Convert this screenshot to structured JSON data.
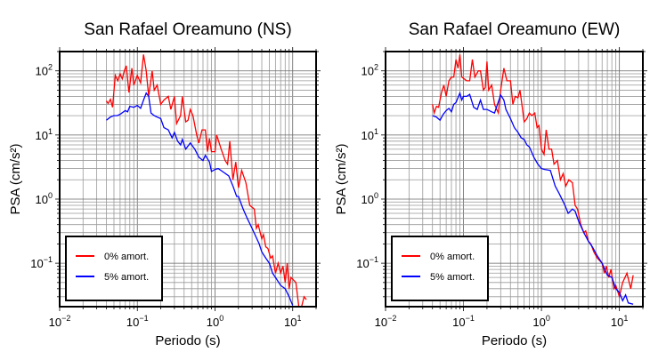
{
  "colors": {
    "series_0": "#ff0000",
    "series_5": "#0000ff",
    "grid": "#999999"
  },
  "chart_data": [
    {
      "type": "line",
      "title": "San Rafael Oreamuno (NS)",
      "xlabel": "Periodo (s)",
      "ylabel": "PSA (cm/s²)",
      "xscale": "log",
      "yscale": "log",
      "xlim": [
        0.01,
        20
      ],
      "ylim": [
        0.021,
        200
      ],
      "xticks": [
        {
          "base": "10",
          "exp": "−2",
          "value": 0.01
        },
        {
          "base": "10",
          "exp": "−1",
          "value": 0.1
        },
        {
          "base": "10",
          "exp": "0",
          "value": 1
        },
        {
          "base": "10",
          "exp": "1",
          "value": 10
        }
      ],
      "yticks": [
        {
          "base": "10",
          "exp": "−1",
          "value": 0.1
        },
        {
          "base": "10",
          "exp": "0",
          "value": 1
        },
        {
          "base": "10",
          "exp": "1",
          "value": 10
        },
        {
          "base": "10",
          "exp": "2",
          "value": 100
        }
      ],
      "grid": true,
      "legend_position": "bottom-left",
      "series": [
        {
          "name": "0% amort.",
          "color": "#ff0000",
          "x": [
            0.04,
            0.042,
            0.045,
            0.048,
            0.052,
            0.056,
            0.06,
            0.064,
            0.068,
            0.072,
            0.078,
            0.085,
            0.09,
            0.1,
            0.11,
            0.12,
            0.13,
            0.14,
            0.155,
            0.165,
            0.18,
            0.2,
            0.22,
            0.25,
            0.27,
            0.3,
            0.32,
            0.36,
            0.38,
            0.42,
            0.45,
            0.48,
            0.52,
            0.58,
            0.62,
            0.68,
            0.75,
            0.8,
            0.85,
            0.9,
            1.0,
            1.05,
            1.2,
            1.35,
            1.45,
            1.55,
            1.7,
            1.85,
            2.0,
            2.2,
            2.5,
            2.8,
            3.2,
            3.4,
            3.6,
            4.0,
            4.2,
            4.5,
            4.8,
            5.2,
            5.5,
            6.0,
            6.5,
            7.0,
            7.5,
            8.0,
            8.5,
            9.0,
            9.5,
            11,
            12,
            13,
            14,
            15
          ],
          "y": [
            34,
            31,
            36,
            27,
            85,
            70,
            90,
            75,
            100,
            120,
            46,
            110,
            60,
            85,
            65,
            180,
            100,
            40,
            100,
            50,
            60,
            30,
            35,
            40,
            25,
            40,
            15,
            20,
            40,
            16,
            17,
            25,
            20,
            10,
            7.5,
            12,
            12,
            5.5,
            8.8,
            5.5,
            5.5,
            10,
            6,
            4,
            3.5,
            8,
            2.0,
            3.8,
            1.5,
            2.8,
            1.8,
            0.8,
            0.7,
            0.35,
            0.4,
            0.24,
            0.28,
            0.18,
            0.17,
            0.12,
            0.13,
            0.07,
            0.1,
            0.07,
            0.09,
            0.05,
            0.1,
            0.04,
            0.06,
            0.05,
            0.02,
            0.02,
            0.03,
            0.027
          ]
        },
        {
          "name": "5% amort.",
          "color": "#0000ff",
          "x": [
            0.04,
            0.045,
            0.05,
            0.055,
            0.06,
            0.07,
            0.075,
            0.08,
            0.09,
            0.1,
            0.11,
            0.12,
            0.13,
            0.14,
            0.15,
            0.165,
            0.18,
            0.2,
            0.22,
            0.25,
            0.28,
            0.3,
            0.33,
            0.36,
            0.38,
            0.42,
            0.48,
            0.55,
            0.62,
            0.7,
            0.75,
            0.85,
            0.9,
            1.0,
            1.1,
            1.3,
            1.5,
            1.7,
            1.9,
            2.0,
            2.3,
            2.6,
            3.0,
            3.4,
            3.7,
            4.0,
            4.5,
            5,
            5.5,
            6,
            7,
            8,
            9,
            10
          ],
          "y": [
            17,
            19,
            20,
            20,
            21,
            24,
            23,
            28,
            27,
            29,
            26,
            35,
            45,
            40,
            22,
            20,
            19,
            18,
            13,
            12,
            9,
            11,
            8,
            7,
            8.5,
            6,
            7.5,
            6,
            4.5,
            4,
            4.8,
            3.8,
            2.7,
            2.9,
            3,
            2.6,
            2.3,
            1.6,
            1.1,
            1.1,
            0.7,
            0.5,
            0.35,
            0.25,
            0.2,
            0.15,
            0.12,
            0.1,
            0.07,
            0.06,
            0.045,
            0.04,
            0.03,
            0.022
          ]
        }
      ]
    },
    {
      "type": "line",
      "title": "San Rafael Oreamuno (EW)",
      "xlabel": "Periodo (s)",
      "ylabel": "PSA (cm/s²)",
      "xscale": "log",
      "yscale": "log",
      "xlim": [
        0.01,
        20
      ],
      "ylim": [
        0.021,
        200
      ],
      "xticks": [
        {
          "base": "10",
          "exp": "−2",
          "value": 0.01
        },
        {
          "base": "10",
          "exp": "−1",
          "value": 0.1
        },
        {
          "base": "10",
          "exp": "0",
          "value": 1
        },
        {
          "base": "10",
          "exp": "1",
          "value": 10
        }
      ],
      "yticks": [
        {
          "base": "10",
          "exp": "−1",
          "value": 0.1
        },
        {
          "base": "10",
          "exp": "0",
          "value": 1
        },
        {
          "base": "10",
          "exp": "1",
          "value": 10
        },
        {
          "base": "10",
          "exp": "2",
          "value": 100
        }
      ],
      "grid": true,
      "legend_position": "bottom-left",
      "series": [
        {
          "name": "0% amort.",
          "color": "#ff0000",
          "x": [
            0.04,
            0.042,
            0.045,
            0.048,
            0.052,
            0.056,
            0.06,
            0.065,
            0.07,
            0.075,
            0.08,
            0.085,
            0.09,
            0.095,
            0.11,
            0.12,
            0.13,
            0.14,
            0.155,
            0.165,
            0.18,
            0.19,
            0.2,
            0.21,
            0.23,
            0.25,
            0.28,
            0.3,
            0.33,
            0.36,
            0.4,
            0.43,
            0.46,
            0.5,
            0.53,
            0.6,
            0.65,
            0.7,
            0.75,
            0.82,
            0.88,
            0.93,
            1.0,
            1.08,
            1.15,
            1.25,
            1.35,
            1.45,
            1.6,
            1.75,
            1.9,
            2.05,
            2.25,
            2.5,
            2.7,
            2.9,
            3.2,
            3.5,
            3.7,
            4.0,
            4.3,
            4.7,
            5.2,
            6,
            6.4,
            6.8,
            7.3,
            7.8,
            8.5,
            9,
            10,
            11,
            12.5,
            14,
            15
          ],
          "y": [
            30,
            22,
            28,
            27,
            45,
            60,
            40,
            70,
            80,
            80,
            150,
            110,
            180,
            80,
            70,
            70,
            150,
            80,
            100,
            100,
            50,
            55,
            140,
            50,
            60,
            30,
            22,
            50,
            110,
            70,
            70,
            30,
            40,
            38,
            50,
            16,
            18,
            22,
            20,
            22,
            13,
            14,
            6,
            5,
            12,
            6,
            6,
            3.5,
            4,
            2,
            2.5,
            1.6,
            2.0,
            1.8,
            0.8,
            0.7,
            0.4,
            0.3,
            0.32,
            0.22,
            0.2,
            0.15,
            0.12,
            0.1,
            0.07,
            0.09,
            0.06,
            0.08,
            0.04,
            0.045,
            0.03,
            0.05,
            0.07,
            0.04,
            0.065
          ]
        },
        {
          "name": "5% amort.",
          "color": "#0000ff",
          "x": [
            0.04,
            0.045,
            0.05,
            0.055,
            0.06,
            0.065,
            0.07,
            0.075,
            0.08,
            0.09,
            0.095,
            0.1,
            0.11,
            0.12,
            0.135,
            0.15,
            0.165,
            0.18,
            0.2,
            0.23,
            0.25,
            0.3,
            0.33,
            0.35,
            0.4,
            0.45,
            0.5,
            0.55,
            0.6,
            0.65,
            0.7,
            0.8,
            0.9,
            1.0,
            1.1,
            1.3,
            1.5,
            1.7,
            2.0,
            2.2,
            2.5,
            2.7,
            3,
            3.5,
            4,
            4.5,
            5.2,
            6,
            7,
            8,
            9,
            10,
            11,
            12,
            13,
            15
          ],
          "y": [
            20,
            19,
            17,
            21,
            24,
            26,
            23,
            30,
            32,
            45,
            35,
            40,
            40,
            43,
            27,
            25,
            35,
            25,
            25,
            23,
            22,
            42,
            35,
            25,
            18,
            13,
            11,
            9,
            8.5,
            7,
            6.5,
            4.5,
            3.5,
            3,
            2.9,
            2.8,
            1.6,
            1.2,
            0.8,
            0.6,
            0.7,
            0.65,
            0.45,
            0.3,
            0.22,
            0.18,
            0.13,
            0.1,
            0.065,
            0.06,
            0.04,
            0.035,
            0.026,
            0.032,
            0.024,
            0.023
          ]
        }
      ]
    }
  ]
}
